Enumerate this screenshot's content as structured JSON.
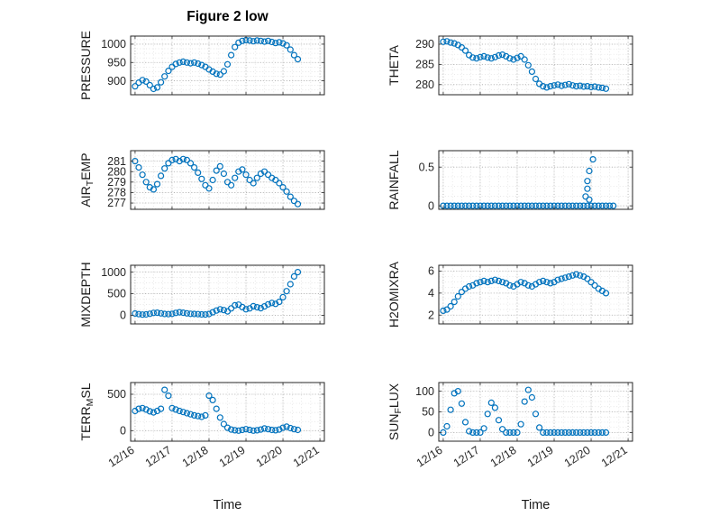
{
  "title": "Figure 2 low",
  "colors": {
    "marker": "#0072BD",
    "axis": "#262626",
    "grid": "#ababab",
    "minor_grid": "#dedede"
  },
  "x_axis": {
    "label": "Time",
    "tick_values": [
      0,
      1,
      2,
      3,
      4,
      5
    ],
    "tick_labels": [
      "12/16",
      "12/17",
      "12/18",
      "12/19",
      "12/20",
      "12/21"
    ],
    "xlim": [
      -0.12,
      5.12
    ],
    "minor_step": 0.25,
    "sample_x": [
      0,
      0.1,
      0.2,
      0.3,
      0.4,
      0.5,
      0.6,
      0.7,
      0.8,
      0.9,
      1,
      1.1,
      1.2,
      1.3,
      1.4,
      1.5,
      1.6,
      1.7,
      1.8,
      1.9,
      2,
      2.1,
      2.2,
      2.3,
      2.4,
      2.5,
      2.6,
      2.7,
      2.8,
      2.9,
      3,
      3.1,
      3.2,
      3.3,
      3.4,
      3.5,
      3.6,
      3.7,
      3.8,
      3.9,
      4,
      4.1,
      4.2,
      4.3,
      4.4
    ]
  },
  "chart_data": [
    {
      "id": "pressure",
      "type": "scatter",
      "ylabel": {
        "pre": "PRESSURE",
        "sub": "",
        "post": ""
      },
      "yticks": [
        900,
        950,
        1000
      ],
      "ylim": [
        862,
        1022
      ],
      "y_minor_step": 12.5,
      "show_x_labels": false,
      "y": [
        885,
        895,
        902,
        898,
        888,
        878,
        882,
        896,
        912,
        927,
        938,
        946,
        950,
        952,
        950,
        948,
        950,
        947,
        943,
        938,
        931,
        925,
        919,
        917,
        926,
        945,
        970,
        992,
        1004,
        1009,
        1011,
        1010,
        1008,
        1010,
        1009,
        1007,
        1009,
        1006,
        1003,
        1005,
        1002,
        997,
        985,
        970,
        959
      ]
    },
    {
      "id": "theta",
      "type": "scatter",
      "ylabel": {
        "pre": "THETA",
        "sub": "",
        "post": ""
      },
      "yticks": [
        280,
        285,
        290
      ],
      "ylim": [
        277.5,
        292
      ],
      "y_minor_step": 1.25,
      "show_x_labels": false,
      "y": [
        290.6,
        290.7,
        290.4,
        290.2,
        289.8,
        289.2,
        288.4,
        287.3,
        286.7,
        286.5,
        286.8,
        287,
        286.7,
        286.5,
        286.8,
        287.2,
        287.4,
        287,
        286.5,
        286.2,
        286.6,
        287,
        286.2,
        284.8,
        283.2,
        281.4,
        280.2,
        279.6,
        279.3,
        279.6,
        279.8,
        280,
        279.7,
        279.9,
        280.1,
        279.8,
        279.6,
        279.7,
        279.5,
        279.6,
        279.4,
        279.5,
        279.3,
        279.2,
        279
      ]
    },
    {
      "id": "air-temp",
      "type": "scatter",
      "ylabel": {
        "pre": "AIR",
        "sub": "T",
        "post": "EMP"
      },
      "yticks": [
        277,
        278,
        279,
        280,
        281
      ],
      "ylim": [
        276.4,
        282
      ],
      "y_minor_step": 0.5,
      "show_x_labels": false,
      "y": [
        281,
        280.4,
        279.7,
        279,
        278.5,
        278.3,
        278.8,
        279.6,
        280.3,
        280.8,
        281.1,
        281.2,
        281,
        281.2,
        281.1,
        280.8,
        280.4,
        279.9,
        279.3,
        278.7,
        278.4,
        279.2,
        280.1,
        280.5,
        279.8,
        279,
        278.7,
        279.4,
        280,
        280.2,
        279.7,
        279.2,
        278.9,
        279.4,
        279.8,
        280,
        279.7,
        279.4,
        279.2,
        278.9,
        278.5,
        278.1,
        277.6,
        277.2,
        276.9
      ]
    },
    {
      "id": "rainfall",
      "type": "scatter",
      "ylabel": {
        "pre": "RAINFALL",
        "sub": "",
        "post": ""
      },
      "yticks": [
        0,
        0.5
      ],
      "ylim": [
        -0.045,
        0.712
      ],
      "y_minor_step": 0.125,
      "show_x_labels": false,
      "x": [
        0,
        0.1,
        0.2,
        0.3,
        0.4,
        0.5,
        0.6,
        0.7,
        0.8,
        0.9,
        1,
        1.1,
        1.2,
        1.3,
        1.4,
        1.5,
        1.6,
        1.7,
        1.8,
        1.9,
        2,
        2.1,
        2.2,
        2.3,
        2.4,
        2.5,
        2.6,
        2.7,
        2.8,
        2.9,
        3,
        3.1,
        3.2,
        3.3,
        3.4,
        3.5,
        3.6,
        3.7,
        3.8,
        3.9,
        4,
        4.1,
        4.2,
        4.3,
        4.4,
        4.5,
        4.6,
        3.85,
        3.9,
        3.9,
        3.95,
        3.95,
        4.05
      ],
      "y": [
        0,
        0,
        0,
        0,
        0,
        0,
        0,
        0,
        0,
        0,
        0,
        0,
        0,
        0,
        0,
        0,
        0,
        0,
        0,
        0,
        0,
        0,
        0,
        0,
        0,
        0,
        0,
        0,
        0,
        0,
        0,
        0,
        0,
        0,
        0,
        0,
        0,
        0,
        0,
        0,
        0,
        0,
        0,
        0,
        0,
        0,
        0,
        0.12,
        0.22,
        0.32,
        0.45,
        0.08,
        0.6
      ]
    },
    {
      "id": "mixdepth",
      "type": "scatter",
      "ylabel": {
        "pre": "MIXDEPTH",
        "sub": "",
        "post": ""
      },
      "yticks": [
        0,
        500,
        1000
      ],
      "ylim": [
        -200,
        1160
      ],
      "y_minor_step": 125,
      "show_x_labels": false,
      "y": [
        40,
        25,
        15,
        20,
        35,
        55,
        60,
        45,
        30,
        25,
        35,
        55,
        70,
        60,
        45,
        35,
        30,
        25,
        20,
        18,
        30,
        70,
        110,
        140,
        120,
        90,
        160,
        230,
        245,
        190,
        140,
        160,
        210,
        185,
        165,
        205,
        255,
        285,
        265,
        310,
        420,
        560,
        720,
        900,
        1000
      ]
    },
    {
      "id": "h2omixra",
      "type": "scatter",
      "ylabel": {
        "pre": "H2OMIXRA",
        "sub": "",
        "post": ""
      },
      "yticks": [
        2,
        4,
        6
      ],
      "ylim": [
        1.2,
        6.53
      ],
      "y_minor_step": 0.5,
      "show_x_labels": false,
      "y": [
        2.4,
        2.5,
        2.8,
        3.2,
        3.7,
        4.1,
        4.4,
        4.6,
        4.7,
        4.9,
        5,
        5.1,
        5,
        5.1,
        5.2,
        5.1,
        5,
        4.9,
        4.7,
        4.6,
        4.8,
        5,
        4.9,
        4.7,
        4.6,
        4.8,
        5,
        5.1,
        5,
        4.9,
        5,
        5.2,
        5.3,
        5.4,
        5.5,
        5.6,
        5.7,
        5.6,
        5.5,
        5.3,
        5,
        4.7,
        4.4,
        4.2,
        4
      ]
    },
    {
      "id": "terr-msl",
      "type": "scatter",
      "ylabel": {
        "pre": "TERR",
        "sub": "M",
        "post": "SL"
      },
      "yticks": [
        0,
        500
      ],
      "ylim": [
        -145,
        661
      ],
      "y_minor_step": 125,
      "show_x_labels": true,
      "y": [
        270,
        300,
        310,
        290,
        265,
        250,
        270,
        300,
        560,
        480,
        310,
        290,
        270,
        255,
        240,
        225,
        210,
        200,
        190,
        210,
        480,
        420,
        300,
        180,
        90,
        40,
        15,
        5,
        0,
        10,
        20,
        10,
        0,
        5,
        15,
        30,
        20,
        10,
        5,
        15,
        40,
        55,
        35,
        20,
        10
      ]
    },
    {
      "id": "sun-flux",
      "type": "scatter",
      "ylabel": {
        "pre": "SUN",
        "sub": "F",
        "post": "LUX"
      },
      "yticks": [
        0,
        50,
        100
      ],
      "ylim": [
        -21,
        121
      ],
      "y_minor_step": 12.5,
      "show_x_labels": true,
      "y": [
        0,
        15,
        55,
        95,
        100,
        70,
        25,
        3,
        0,
        0,
        0,
        10,
        45,
        72,
        60,
        30,
        8,
        0,
        0,
        0,
        0,
        20,
        75,
        103,
        85,
        45,
        12,
        0,
        0,
        0,
        0,
        0,
        0,
        0,
        0,
        0,
        0,
        0,
        0,
        0,
        0,
        0,
        0,
        0,
        0
      ]
    }
  ]
}
